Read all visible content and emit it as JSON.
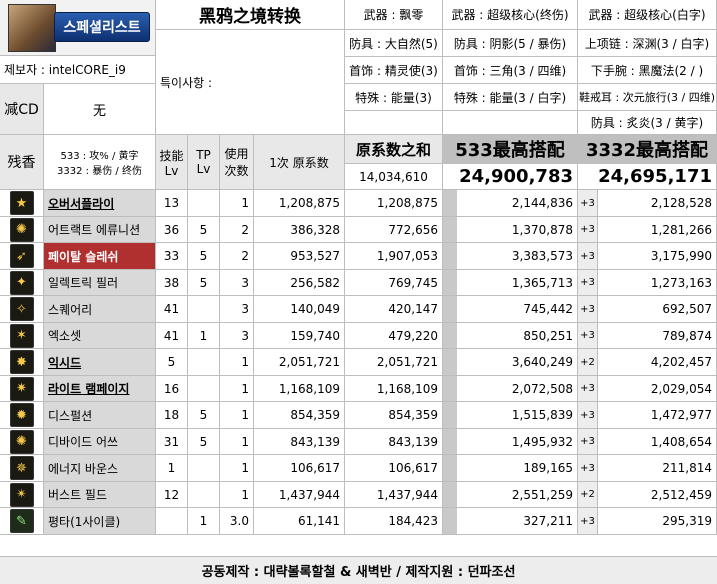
{
  "logo": {
    "text": "스페셜리스트"
  },
  "title": "黑鸦之境转换",
  "provider": "제보자 : intelCORE_i9",
  "notes_label": "특이사항 :",
  "cd_label": "减CD",
  "cd_value": "无",
  "aroma_label": "残香",
  "aroma_lines": [
    "533 : 攻% / 黄字",
    "3332 : 暴伤 / 终伤"
  ],
  "gear_col1": [
    "武器 : 飘零",
    "防具 : 大自然(5)",
    "首饰 : 精灵使(3)",
    "特殊 : 能量(3)"
  ],
  "gear_col2": [
    "武器 : 超级核心(终伤)",
    "防具 : 阴影(5 / 暴伤)",
    "首饰 : 三角(3 / 四维)",
    "特殊 : 能量(3 / 白字)"
  ],
  "gear_col3": [
    "武器 : 超级核心(白字)",
    "上项链 : 深渊(3 / 白字)",
    "下手腕 : 黑魔法(2 / )",
    "鞋戒耳 : 次元旅行(3 / 四维)",
    "防具 : 炙炎(3 / 黄字)"
  ],
  "headers": {
    "skill_lv": "技能 Lv",
    "tp_lv": "TP Lv",
    "uses": "使用 次数",
    "base": "1次 原系数",
    "sum_label": "原系数之和",
    "sum_total": "14,034,610",
    "col533": "533最高搭配",
    "col533_total": "24,900,783",
    "col3332": "3332最高搭配",
    "col3332_total": "24,695,171"
  },
  "rows": [
    {
      "name": "오버서플라이",
      "style": "bold-underline",
      "icon": "★",
      "lv": "13",
      "tp": "",
      "uses": "1",
      "base": "1,208,875",
      "sum": "1,208,875",
      "v533": "2,144,836",
      "plus": "+3",
      "v3332": "2,128,528"
    },
    {
      "name": "어트랙트 에류니션",
      "style": "normal",
      "icon": "✺",
      "lv": "36",
      "tp": "5",
      "uses": "2",
      "base": "386,328",
      "sum": "772,656",
      "v533": "1,370,878",
      "plus": "+3",
      "v3332": "1,281,266"
    },
    {
      "name": "페이탈 슬레쉬",
      "style": "red",
      "icon": "➶",
      "lv": "33",
      "tp": "5",
      "uses": "2",
      "base": "953,527",
      "sum": "1,907,053",
      "v533": "3,383,573",
      "plus": "+3",
      "v3332": "3,175,990"
    },
    {
      "name": "일렉트릭 필러",
      "style": "normal",
      "icon": "✦",
      "lv": "38",
      "tp": "5",
      "uses": "3",
      "base": "256,582",
      "sum": "769,745",
      "v533": "1,365,713",
      "plus": "+3",
      "v3332": "1,273,163"
    },
    {
      "name": "스퀘어리",
      "style": "normal",
      "icon": "✧",
      "lv": "41",
      "tp": "",
      "uses": "3",
      "base": "140,049",
      "sum": "420,147",
      "v533": "745,442",
      "plus": "+3",
      "v3332": "692,507"
    },
    {
      "name": "엑소셋",
      "style": "normal",
      "icon": "✶",
      "lv": "41",
      "tp": "1",
      "uses": "3",
      "base": "159,740",
      "sum": "479,220",
      "v533": "850,251",
      "plus": "+3",
      "v3332": "789,874"
    },
    {
      "name": "익시드",
      "style": "bold-underline",
      "icon": "✸",
      "lv": "5",
      "tp": "",
      "uses": "1",
      "base": "2,051,721",
      "sum": "2,051,721",
      "v533": "3,640,249",
      "plus": "+2",
      "v3332": "4,202,457"
    },
    {
      "name": "라이트 램페이지",
      "style": "bold-underline",
      "icon": "✷",
      "lv": "16",
      "tp": "",
      "uses": "1",
      "base": "1,168,109",
      "sum": "1,168,109",
      "v533": "2,072,508",
      "plus": "+3",
      "v3332": "2,029,054"
    },
    {
      "name": "디스펄션",
      "style": "normal",
      "icon": "✹",
      "lv": "18",
      "tp": "5",
      "uses": "1",
      "base": "854,359",
      "sum": "854,359",
      "v533": "1,515,839",
      "plus": "+3",
      "v3332": "1,472,977"
    },
    {
      "name": "디바이드 어쓰",
      "style": "normal",
      "icon": "✺",
      "lv": "31",
      "tp": "5",
      "uses": "1",
      "base": "843,139",
      "sum": "843,139",
      "v533": "1,495,932",
      "plus": "+3",
      "v3332": "1,408,654"
    },
    {
      "name": "에너지 바운스",
      "style": "normal",
      "icon": "✵",
      "lv": "1",
      "tp": "",
      "uses": "1",
      "base": "106,617",
      "sum": "106,617",
      "v533": "189,165",
      "plus": "+3",
      "v3332": "211,814"
    },
    {
      "name": "버스트 필드",
      "style": "normal",
      "icon": "✴",
      "lv": "12",
      "tp": "",
      "uses": "1",
      "base": "1,437,944",
      "sum": "1,437,944",
      "v533": "2,551,259",
      "plus": "+2",
      "v3332": "2,512,459"
    },
    {
      "name": "평타(1사이클)",
      "style": "normal",
      "icon": "✎",
      "lv": "",
      "tp": "1",
      "uses": "3.0",
      "base": "61,141",
      "sum": "184,423",
      "v533": "327,211",
      "plus": "+3",
      "v3332": "295,319"
    }
  ],
  "footer": "공동제작 : 대략볼록할철 & 새벽반 / 제작지원 : 던파조선"
}
